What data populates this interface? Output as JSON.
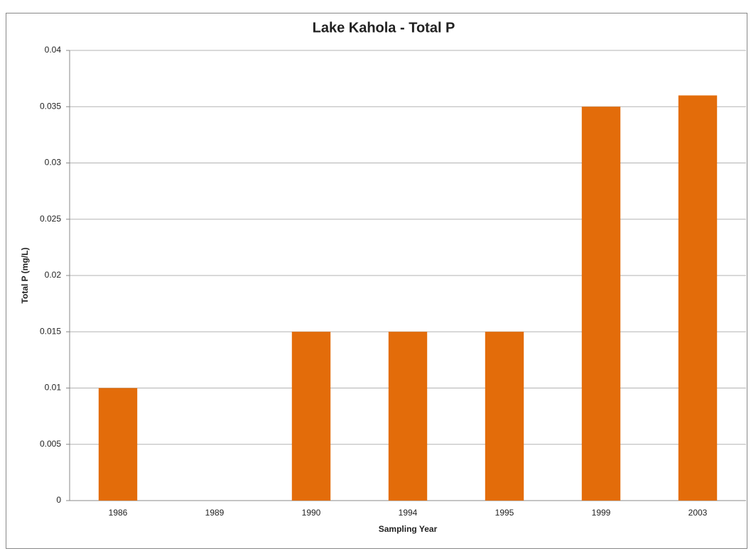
{
  "chart_data": {
    "type": "bar",
    "title": "Lake Kahola - Total P",
    "x_label": "Sampling Year",
    "y_label": "Total P (mg/L)",
    "categories": [
      "1986",
      "1989",
      "1990",
      "1994",
      "1995",
      "1999",
      "2003"
    ],
    "values": [
      0.01,
      null,
      0.015,
      0.015,
      0.015,
      0.035,
      0.036
    ],
    "color": "#e36c0a",
    "ylim": [
      0,
      0.04
    ],
    "yticks": [
      0,
      0.005,
      0.01,
      0.015,
      0.02,
      0.025,
      0.03,
      0.035,
      0.04
    ],
    "grid": true
  }
}
